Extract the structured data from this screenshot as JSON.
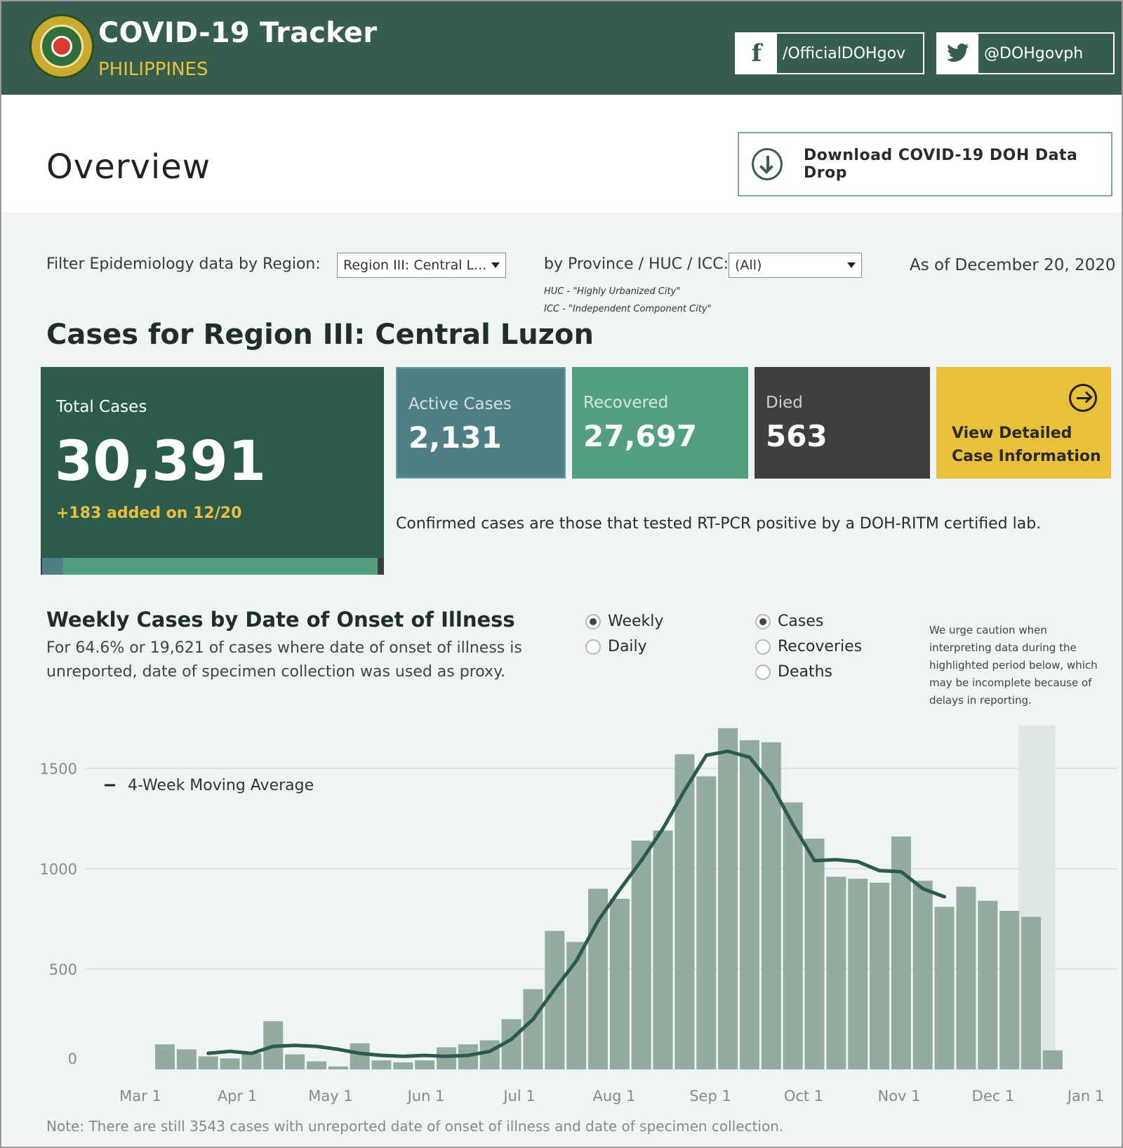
{
  "header": {
    "title": "COVID-19 Tracker",
    "subtitle": "PHILIPPINES",
    "facebook_handle": "/OfficialDOHgov",
    "twitter_handle": "@DOHgovph"
  },
  "overview": {
    "title": "Overview",
    "download_label": "Download COVID-19 DOH Data Drop"
  },
  "filters": {
    "region_label": "Filter Epidemiology data by Region:",
    "region_value": "Region III: Central L...",
    "province_label": "by Province / HUC / ICC:",
    "province_value": "(All)",
    "huc_note": "HUC - \"Highly Urbanized City\"",
    "icc_note": "ICC - \"Independent Component City\"",
    "as_of": "As of December 20, 2020"
  },
  "region_heading": "Cases for Region III: Central Luzon",
  "kpis": {
    "total_label": "Total Cases",
    "total_value": "30,391",
    "total_added": "+183 added on 12/20",
    "active_label": "Active Cases",
    "active_value": "2,131",
    "recovered_label": "Recovered",
    "recovered_value": "27,697",
    "died_label": "Died",
    "died_value": "563",
    "detail_line1": "View Detailed",
    "detail_line2": "Case Information"
  },
  "confirmed_note": "Confirmed cases are those that tested RT-PCR positive by a DOH-RITM certified lab.",
  "weekly": {
    "title": "Weekly Cases by Date of Onset of Illness",
    "sub_line1": "For 64.6% or 19,621 of cases where date of onset of illness is",
    "sub_line2": "unreported, date of specimen collection was used as proxy.",
    "radio_weekly": "Weekly",
    "radio_daily": "Daily",
    "radio_cases": "Cases",
    "radio_recoveries": "Recoveries",
    "radio_deaths": "Deaths",
    "caution_text": "We urge caution when interpreting data during the highlighted period below, which may be incomplete because of delays in reporting."
  },
  "chart_data": {
    "type": "bar",
    "title": "Weekly Cases by Date of Onset of Illness",
    "xlabel": "",
    "ylabel": "",
    "ylim": [
      0,
      1650
    ],
    "yticks": [
      0,
      500,
      1000,
      1500
    ],
    "x_tick_labels": [
      "Mar 1",
      "Apr 1",
      "May 1",
      "Jun 1",
      "Jul 1",
      "Aug 1",
      "Sep 1",
      "Oct 1",
      "Nov 1",
      "Dec 1",
      "Jan 1"
    ],
    "legend": [
      "4-Week Moving Average"
    ],
    "series": [
      {
        "name": "Weekly Cases",
        "values": [
          125,
          100,
          65,
          55,
          80,
          240,
          75,
          40,
          15,
          130,
          45,
          35,
          45,
          110,
          125,
          145,
          250,
          400,
          690,
          635,
          900,
          850,
          1140,
          1190,
          1570,
          1460,
          1700,
          1640,
          1630,
          1330,
          1150,
          960,
          950,
          930,
          1160,
          940,
          810,
          910,
          840,
          790,
          760,
          95
        ]
      },
      {
        "name": "4-Week Moving Average",
        "start_index": 2,
        "values": [
          80,
          90,
          80,
          115,
          120,
          115,
          100,
          80,
          70,
          65,
          70,
          65,
          70,
          90,
          150,
          250,
          400,
          540,
          740,
          895,
          1040,
          1200,
          1390,
          1565,
          1585,
          1555,
          1420,
          1220,
          1040,
          1045,
          1035,
          990,
          985,
          900,
          860
        ]
      }
    ],
    "highlighted_period": "last two weeks (incomplete reporting)"
  },
  "footnote": "Note: There are still 3543 cases with unreported date of onset of illness and date of specimen collection."
}
